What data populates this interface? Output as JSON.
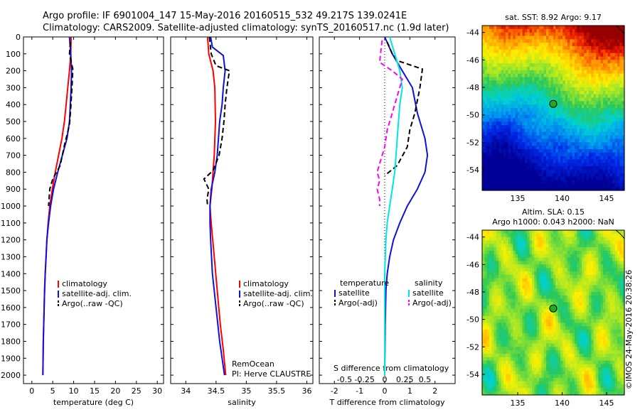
{
  "title_line1": "Argo profile: IF 6901004_147 15-May-2016 20160515_532 49.217S 139.0241E",
  "title_line2": "Climatology: CARS2009. Satellite-adjusted climatology: synTS_20160517.nc (1.9d later)",
  "watermark": "©IMOS 24-May-2016 20:38:26",
  "remocean_line1": "RemOcean",
  "remocean_line2": "PI: Herve CLAUSTRE",
  "colors": {
    "climatology": "#ff0000",
    "satellite": "#1010dd",
    "argo": "#000000",
    "sat_salinity": "#00e5e5",
    "argo_salinity": "#ff00ff"
  },
  "chart_data": [
    {
      "id": "temperature",
      "type": "line",
      "xlabel": "temperature (deg C)",
      "ylabel": "",
      "xlim": [
        -2,
        31.5
      ],
      "ylim": [
        2050,
        0
      ],
      "xticks": [
        0,
        5,
        10,
        15,
        20,
        25,
        30
      ],
      "yticks": [
        0,
        100,
        200,
        300,
        400,
        500,
        600,
        700,
        800,
        900,
        1000,
        1100,
        1200,
        1300,
        1400,
        1500,
        1600,
        1700,
        1800,
        1900,
        2000
      ],
      "legend": [
        "climatology",
        "satellite-adj. clim.",
        "Argo(..raw -QC)"
      ],
      "series": [
        {
          "name": "climatology",
          "color": "#ff0000",
          "dash": "",
          "points": [
            [
              9.4,
              0
            ],
            [
              9.3,
              100
            ],
            [
              9.0,
              200
            ],
            [
              8.6,
              300
            ],
            [
              8.2,
              400
            ],
            [
              7.8,
              500
            ],
            [
              7.2,
              600
            ],
            [
              6.4,
              700
            ],
            [
              5.6,
              800
            ],
            [
              4.9,
              900
            ],
            [
              4.3,
              1000
            ],
            [
              3.9,
              1100
            ],
            [
              3.6,
              1200
            ],
            [
              3.4,
              1300
            ],
            [
              3.2,
              1400
            ],
            [
              3.05,
              1500
            ],
            [
              2.95,
              1600
            ],
            [
              2.85,
              1700
            ],
            [
              2.75,
              1800
            ],
            [
              2.7,
              1900
            ],
            [
              2.65,
              2000
            ]
          ]
        },
        {
          "name": "satellite-adj. clim.",
          "color": "#1010dd",
          "dash": "",
          "points": [
            [
              9.0,
              0
            ],
            [
              9.3,
              100
            ],
            [
              9.5,
              200
            ],
            [
              9.4,
              300
            ],
            [
              9.2,
              400
            ],
            [
              9.0,
              500
            ],
            [
              8.4,
              600
            ],
            [
              7.3,
              700
            ],
            [
              6.2,
              800
            ],
            [
              5.2,
              900
            ],
            [
              4.5,
              1000
            ],
            [
              4.0,
              1100
            ],
            [
              3.6,
              1200
            ],
            [
              3.4,
              1300
            ],
            [
              3.2,
              1400
            ],
            [
              3.05,
              1500
            ],
            [
              2.95,
              1600
            ],
            [
              2.85,
              1700
            ],
            [
              2.75,
              1800
            ],
            [
              2.7,
              1900
            ],
            [
              2.65,
              2000
            ]
          ]
        },
        {
          "name": "Argo(..raw -QC)",
          "color": "#000000",
          "dash": "7,4",
          "points": [
            [
              9.2,
              30
            ],
            [
              9.0,
              100
            ],
            [
              9.8,
              190
            ],
            [
              9.6,
              300
            ],
            [
              9.3,
              420
            ],
            [
              9.0,
              520
            ],
            [
              7.8,
              640
            ],
            [
              6.8,
              760
            ],
            [
              5.0,
              840
            ],
            [
              4.3,
              900
            ],
            [
              4.0,
              1000
            ]
          ]
        }
      ]
    },
    {
      "id": "salinity",
      "type": "line",
      "xlabel": "salinity",
      "ylabel": "",
      "xlim": [
        33.75,
        36.1
      ],
      "ylim": [
        2050,
        0
      ],
      "xticks": [
        34,
        34.5,
        35,
        35.5,
        36
      ],
      "yticks": [
        0,
        100,
        200,
        300,
        400,
        500,
        600,
        700,
        800,
        900,
        1000,
        1100,
        1200,
        1300,
        1400,
        1500,
        1600,
        1700,
        1800,
        1900,
        2000
      ],
      "legend": [
        "climatology",
        "satellite-adj. clim.",
        "Argo(..raw -QC)"
      ],
      "series": [
        {
          "name": "climatology",
          "color": "#ff0000",
          "dash": "",
          "points": [
            [
              34.36,
              0
            ],
            [
              34.38,
              100
            ],
            [
              34.45,
              200
            ],
            [
              34.48,
              300
            ],
            [
              34.49,
              500
            ],
            [
              34.47,
              700
            ],
            [
              34.43,
              900
            ],
            [
              34.4,
              1000
            ],
            [
              34.42,
              1100
            ],
            [
              34.47,
              1300
            ],
            [
              34.52,
              1500
            ],
            [
              34.57,
              1700
            ],
            [
              34.62,
              1850
            ],
            [
              34.66,
              2000
            ]
          ]
        },
        {
          "name": "satellite-adj. clim.",
          "color": "#1010dd",
          "dash": "",
          "points": [
            [
              34.41,
              0
            ],
            [
              34.44,
              60
            ],
            [
              34.62,
              110
            ],
            [
              34.65,
              200
            ],
            [
              34.62,
              300
            ],
            [
              34.6,
              400
            ],
            [
              34.56,
              500
            ],
            [
              34.54,
              600
            ],
            [
              34.52,
              700
            ],
            [
              34.48,
              800
            ],
            [
              34.42,
              900
            ],
            [
              34.4,
              1000
            ],
            [
              34.4,
              1100
            ],
            [
              34.41,
              1200
            ],
            [
              34.44,
              1400
            ],
            [
              34.5,
              1600
            ],
            [
              34.56,
              1800
            ],
            [
              34.62,
              1950
            ],
            [
              34.64,
              2000
            ]
          ]
        },
        {
          "name": "Argo(..raw -QC)",
          "color": "#000000",
          "dash": "7,4",
          "points": [
            [
              34.39,
              0
            ],
            [
              34.42,
              100
            ],
            [
              34.5,
              170
            ],
            [
              34.72,
              200
            ],
            [
              34.68,
              300
            ],
            [
              34.65,
              400
            ],
            [
              34.63,
              500
            ],
            [
              34.6,
              600
            ],
            [
              34.55,
              700
            ],
            [
              34.45,
              790
            ],
            [
              34.3,
              840
            ],
            [
              34.38,
              900
            ],
            [
              34.35,
              960
            ],
            [
              34.36,
              1000
            ]
          ]
        }
      ]
    },
    {
      "id": "difference",
      "type": "line",
      "xlabel": "T difference from climatology",
      "xlabel_top": "S difference from climatology",
      "xlim": [
        -2.6,
        2.8
      ],
      "ylim": [
        2050,
        0
      ],
      "xticks": [
        -2,
        -1,
        0,
        1,
        2
      ],
      "top_ticks": [
        -0.5,
        -0.25,
        0,
        0.25,
        0.5
      ],
      "yticks": [
        0,
        100,
        200,
        300,
        400,
        500,
        600,
        700,
        800,
        900,
        1000,
        1100,
        1200,
        1300,
        1400,
        1500,
        1600,
        1700,
        1800,
        1900,
        2000
      ],
      "legend_temperature_title": "temperature",
      "legend_salinity_title": "salinity",
      "legend": [
        "satellite",
        "Argo(-adj)",
        "satellite",
        "Argo(-adj)"
      ],
      "series": [
        {
          "name": "satellite",
          "group": "temperature",
          "color": "#1010dd",
          "dash": "",
          "points": [
            [
              0.0,
              0
            ],
            [
              0.3,
              100
            ],
            [
              0.7,
              200
            ],
            [
              1.1,
              300
            ],
            [
              1.3,
              450
            ],
            [
              1.6,
              600
            ],
            [
              1.7,
              700
            ],
            [
              1.6,
              800
            ],
            [
              1.3,
              900
            ],
            [
              0.9,
              1000
            ],
            [
              0.6,
              1100
            ],
            [
              0.35,
              1200
            ],
            [
              0.2,
              1300
            ],
            [
              0.1,
              1400
            ],
            [
              0.05,
              1500
            ],
            [
              0.02,
              1700
            ],
            [
              0.0,
              2000
            ]
          ]
        },
        {
          "name": "Argo(-adj)",
          "group": "temperature",
          "color": "#000000",
          "dash": "7,4",
          "points": [
            [
              0.1,
              30
            ],
            [
              0.3,
              100
            ],
            [
              0.5,
              140
            ],
            [
              1.5,
              190
            ],
            [
              1.4,
              300
            ],
            [
              1.2,
              450
            ],
            [
              1.0,
              550
            ],
            [
              0.9,
              650
            ],
            [
              0.5,
              760
            ],
            [
              0.0,
              820
            ]
          ]
        },
        {
          "name": "satellite",
          "group": "salinity",
          "color": "#00e5e5",
          "dash": "",
          "points": [
            [
              0.2,
              0
            ],
            [
              0.4,
              100
            ],
            [
              0.6,
              200
            ],
            [
              0.7,
              300
            ],
            [
              0.6,
              400
            ],
            [
              0.55,
              500
            ],
            [
              0.5,
              600
            ],
            [
              0.45,
              700
            ],
            [
              0.4,
              800
            ],
            [
              0.3,
              900
            ],
            [
              0.2,
              1000
            ],
            [
              0.1,
              1100
            ],
            [
              0.05,
              1200
            ],
            [
              0.0,
              1400
            ],
            [
              0.0,
              2000
            ]
          ]
        },
        {
          "name": "Argo(-adj)",
          "group": "salinity",
          "color": "#ff00ff",
          "dash": "7,4",
          "points": [
            [
              -0.1,
              20
            ],
            [
              -0.15,
              80
            ],
            [
              -0.2,
              150
            ],
            [
              0.3,
              200
            ],
            [
              0.7,
              250
            ],
            [
              0.5,
              350
            ],
            [
              0.3,
              450
            ],
            [
              0.1,
              550
            ],
            [
              0.0,
              650
            ],
            [
              -0.2,
              750
            ],
            [
              -0.3,
              800
            ],
            [
              -0.2,
              850
            ],
            [
              -0.3,
              900
            ],
            [
              -0.2,
              960
            ],
            [
              -0.2,
              1000
            ]
          ]
        }
      ]
    },
    {
      "id": "sst_map",
      "type": "heatmap",
      "title": "sat. SST: 8.92 Argo: 9.17",
      "xlim": [
        131,
        147
      ],
      "ylim": [
        -55.5,
        -43.5
      ],
      "xticks": [
        135,
        140,
        145
      ],
      "yticks": [
        -44,
        -46,
        -48,
        -50,
        -52,
        -54
      ],
      "argo_position": [
        139.0,
        -49.2
      ]
    },
    {
      "id": "sla_map",
      "type": "heatmap",
      "title_line1": "Altim. SLA: 0.15",
      "title_line2": "Argo h1000: 0.043 h2000: NaN",
      "xlim": [
        131,
        147
      ],
      "ylim": [
        -55.5,
        -43.5
      ],
      "xticks": [
        135,
        140,
        145
      ],
      "yticks": [
        -44,
        -46,
        -48,
        -50,
        -52,
        -54
      ],
      "argo_position": [
        139.0,
        -49.2
      ]
    }
  ]
}
